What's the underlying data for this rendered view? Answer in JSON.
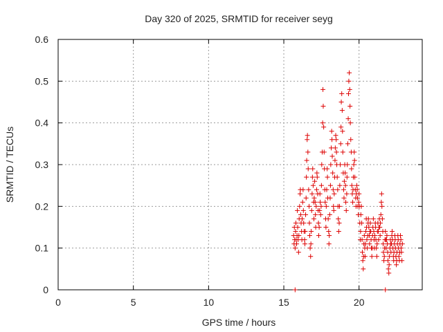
{
  "chart_data": {
    "type": "scatter",
    "title": "Day 320 of 2025, SRMTID for receiver seyg",
    "xlabel": "GPS time / hours",
    "ylabel": "SRMTID / TECUs",
    "xlim": [
      0,
      24.2
    ],
    "ylim": [
      0,
      0.6
    ],
    "x_ticks": [
      0,
      5,
      10,
      15,
      20
    ],
    "x_tick_labels": [
      "0",
      "5",
      "10",
      "15",
      "20"
    ],
    "y_ticks": [
      0,
      0.1,
      0.2,
      0.3,
      0.4,
      0.5,
      0.6
    ],
    "y_tick_labels": [
      "0",
      "0.1",
      "0.2",
      "0.3",
      "0.4",
      "0.5",
      "0.6"
    ],
    "grid": true,
    "marker": "+",
    "series_color": "#dd0000",
    "series": [
      {
        "name": "SRMTID",
        "points": [
          [
            15.65,
            0.13
          ],
          [
            15.68,
            0.11
          ],
          [
            15.7,
            0.15
          ],
          [
            15.72,
            0.12
          ],
          [
            15.75,
            0.1
          ],
          [
            15.78,
            0.14
          ],
          [
            15.8,
            0.16
          ],
          [
            15.82,
            0.12
          ],
          [
            15.85,
            0.11
          ],
          [
            15.88,
            0.13
          ],
          [
            15.9,
            0.19
          ],
          [
            15.92,
            0.15
          ],
          [
            15.95,
            0.12
          ],
          [
            15.98,
            0.09
          ],
          [
            16.0,
            0.13
          ],
          [
            16.02,
            0.17
          ],
          [
            16.05,
            0.2
          ],
          [
            16.08,
            0.23
          ],
          [
            16.1,
            0.24
          ],
          [
            16.12,
            0.18
          ],
          [
            16.15,
            0.16
          ],
          [
            16.18,
            0.14
          ],
          [
            16.2,
            0.12
          ],
          [
            16.22,
            0.17
          ],
          [
            16.25,
            0.21
          ],
          [
            16.28,
            0.24
          ],
          [
            16.3,
            0.19
          ],
          [
            16.32,
            0.16
          ],
          [
            16.35,
            0.14
          ],
          [
            16.38,
            0.12
          ],
          [
            16.4,
            0.11
          ],
          [
            16.42,
            0.14
          ],
          [
            16.45,
            0.18
          ],
          [
            16.48,
            0.22
          ],
          [
            16.5,
            0.27
          ],
          [
            16.52,
            0.31
          ],
          [
            16.55,
            0.36
          ],
          [
            16.57,
            0.37
          ],
          [
            16.6,
            0.33
          ],
          [
            16.62,
            0.29
          ],
          [
            16.65,
            0.24
          ],
          [
            16.68,
            0.2
          ],
          [
            16.7,
            0.16
          ],
          [
            16.72,
            0.13
          ],
          [
            16.75,
            0.1
          ],
          [
            16.78,
            0.08
          ],
          [
            16.8,
            0.11
          ],
          [
            16.82,
            0.14
          ],
          [
            16.85,
            0.19
          ],
          [
            16.88,
            0.23
          ],
          [
            16.9,
            0.27
          ],
          [
            16.92,
            0.29
          ],
          [
            16.95,
            0.25
          ],
          [
            16.98,
            0.21
          ],
          [
            17.0,
            0.17
          ],
          [
            17.02,
            0.22
          ],
          [
            17.05,
            0.26
          ],
          [
            17.08,
            0.21
          ],
          [
            17.1,
            0.18
          ],
          [
            17.12,
            0.15
          ],
          [
            17.15,
            0.2
          ],
          [
            17.18,
            0.24
          ],
          [
            17.2,
            0.28
          ],
          [
            17.22,
            0.27
          ],
          [
            17.25,
            0.23
          ],
          [
            17.28,
            0.19
          ],
          [
            17.3,
            0.16
          ],
          [
            17.32,
            0.13
          ],
          [
            17.35,
            0.15
          ],
          [
            17.38,
            0.19
          ],
          [
            17.4,
            0.23
          ],
          [
            17.42,
            0.21
          ],
          [
            17.45,
            0.18
          ],
          [
            17.48,
            0.2
          ],
          [
            17.5,
            0.25
          ],
          [
            17.52,
            0.3
          ],
          [
            17.55,
            0.33
          ],
          [
            17.58,
            0.4
          ],
          [
            17.6,
            0.48
          ],
          [
            17.62,
            0.44
          ],
          [
            17.65,
            0.39
          ],
          [
            17.68,
            0.33
          ],
          [
            17.7,
            0.29
          ],
          [
            17.72,
            0.24
          ],
          [
            17.75,
            0.21
          ],
          [
            17.78,
            0.17
          ],
          [
            17.8,
            0.15
          ],
          [
            17.82,
            0.2
          ],
          [
            17.85,
            0.24
          ],
          [
            17.88,
            0.29
          ],
          [
            17.9,
            0.27
          ],
          [
            17.92,
            0.22
          ],
          [
            17.95,
            0.17
          ],
          [
            17.98,
            0.14
          ],
          [
            18.0,
            0.11
          ],
          [
            18.02,
            0.13
          ],
          [
            18.05,
            0.18
          ],
          [
            18.08,
            0.22
          ],
          [
            18.1,
            0.25
          ],
          [
            18.12,
            0.3
          ],
          [
            18.15,
            0.34
          ],
          [
            18.18,
            0.38
          ],
          [
            18.2,
            0.36
          ],
          [
            18.22,
            0.32
          ],
          [
            18.25,
            0.28
          ],
          [
            18.28,
            0.24
          ],
          [
            18.3,
            0.2
          ],
          [
            18.32,
            0.19
          ],
          [
            18.35,
            0.23
          ],
          [
            18.38,
            0.27
          ],
          [
            18.4,
            0.31
          ],
          [
            18.42,
            0.34
          ],
          [
            18.45,
            0.37
          ],
          [
            18.48,
            0.36
          ],
          [
            18.5,
            0.33
          ],
          [
            18.52,
            0.3
          ],
          [
            18.55,
            0.27
          ],
          [
            18.58,
            0.24
          ],
          [
            18.6,
            0.2
          ],
          [
            18.62,
            0.17
          ],
          [
            18.65,
            0.14
          ],
          [
            18.68,
            0.16
          ],
          [
            18.7,
            0.2
          ],
          [
            18.72,
            0.25
          ],
          [
            18.75,
            0.3
          ],
          [
            18.78,
            0.35
          ],
          [
            18.8,
            0.39
          ],
          [
            18.82,
            0.45
          ],
          [
            18.85,
            0.47
          ],
          [
            18.88,
            0.43
          ],
          [
            18.9,
            0.38
          ],
          [
            18.92,
            0.33
          ],
          [
            18.95,
            0.28
          ],
          [
            18.98,
            0.24
          ],
          [
            19.0,
            0.22
          ],
          [
            19.02,
            0.26
          ],
          [
            19.05,
            0.3
          ],
          [
            19.08,
            0.28
          ],
          [
            19.1,
            0.25
          ],
          [
            19.12,
            0.21
          ],
          [
            19.15,
            0.19
          ],
          [
            19.18,
            0.23
          ],
          [
            19.2,
            0.27
          ],
          [
            19.22,
            0.3
          ],
          [
            19.25,
            0.35
          ],
          [
            19.28,
            0.41
          ],
          [
            19.3,
            0.47
          ],
          [
            19.32,
            0.5
          ],
          [
            19.35,
            0.52
          ],
          [
            19.38,
            0.48
          ],
          [
            19.4,
            0.44
          ],
          [
            19.42,
            0.4
          ],
          [
            19.45,
            0.36
          ],
          [
            19.48,
            0.33
          ],
          [
            19.5,
            0.29
          ],
          [
            19.52,
            0.25
          ],
          [
            19.55,
            0.23
          ],
          [
            19.58,
            0.21
          ],
          [
            19.6,
            0.24
          ],
          [
            19.62,
            0.27
          ],
          [
            19.65,
            0.3
          ],
          [
            19.68,
            0.33
          ],
          [
            19.7,
            0.31
          ],
          [
            19.72,
            0.27
          ],
          [
            19.75,
            0.24
          ],
          [
            19.78,
            0.22
          ],
          [
            19.8,
            0.2
          ],
          [
            19.82,
            0.23
          ],
          [
            19.85,
            0.25
          ],
          [
            19.88,
            0.24
          ],
          [
            19.9,
            0.22
          ],
          [
            19.92,
            0.2
          ],
          [
            19.95,
            0.18
          ],
          [
            19.98,
            0.21
          ],
          [
            20.0,
            0.23
          ],
          [
            20.02,
            0.2
          ],
          [
            20.05,
            0.16
          ],
          [
            20.08,
            0.12
          ],
          [
            20.1,
            0.14
          ],
          [
            20.12,
            0.18
          ],
          [
            20.15,
            0.2
          ],
          [
            20.18,
            0.16
          ],
          [
            20.2,
            0.12
          ],
          [
            20.22,
            0.09
          ],
          [
            20.25,
            0.07
          ],
          [
            20.28,
            0.05
          ],
          [
            20.3,
            0.08
          ],
          [
            20.32,
            0.11
          ],
          [
            20.35,
            0.13
          ],
          [
            20.38,
            0.1
          ],
          [
            20.4,
            0.08
          ],
          [
            20.42,
            0.11
          ],
          [
            20.45,
            0.14
          ],
          [
            20.48,
            0.17
          ],
          [
            20.5,
            0.15
          ],
          [
            20.52,
            0.12
          ],
          [
            20.55,
            0.1
          ],
          [
            20.58,
            0.13
          ],
          [
            20.6,
            0.16
          ],
          [
            20.62,
            0.17
          ],
          [
            20.65,
            0.15
          ],
          [
            20.68,
            0.13
          ],
          [
            20.7,
            0.11
          ],
          [
            20.72,
            0.14
          ],
          [
            20.75,
            0.16
          ],
          [
            20.78,
            0.14
          ],
          [
            20.8,
            0.12
          ],
          [
            20.82,
            0.1
          ],
          [
            20.85,
            0.08
          ],
          [
            20.88,
            0.1
          ],
          [
            20.9,
            0.13
          ],
          [
            20.92,
            0.15
          ],
          [
            20.95,
            0.17
          ],
          [
            20.98,
            0.14
          ],
          [
            21.0,
            0.12
          ],
          [
            21.02,
            0.1
          ],
          [
            21.05,
            0.13
          ],
          [
            21.08,
            0.16
          ],
          [
            21.1,
            0.15
          ],
          [
            21.12,
            0.12
          ],
          [
            21.15,
            0.1
          ],
          [
            21.18,
            0.08
          ],
          [
            21.2,
            0.11
          ],
          [
            21.22,
            0.14
          ],
          [
            21.25,
            0.16
          ],
          [
            21.28,
            0.14
          ],
          [
            21.3,
            0.12
          ],
          [
            21.32,
            0.15
          ],
          [
            21.35,
            0.17
          ],
          [
            21.38,
            0.15
          ],
          [
            21.4,
            0.13
          ],
          [
            21.42,
            0.16
          ],
          [
            21.45,
            0.18
          ],
          [
            21.48,
            0.21
          ],
          [
            21.5,
            0.23
          ],
          [
            21.52,
            0.2
          ],
          [
            21.55,
            0.17
          ],
          [
            21.58,
            0.14
          ],
          [
            21.6,
            0.11
          ],
          [
            21.62,
            0.09
          ],
          [
            21.65,
            0.07
          ],
          [
            21.68,
            0.08
          ],
          [
            21.7,
            0.1
          ],
          [
            21.72,
            0.12
          ],
          [
            21.75,
            0.14
          ],
          [
            21.78,
            0.12
          ],
          [
            21.8,
            0.1
          ],
          [
            21.82,
            0.12
          ],
          [
            21.85,
            0.13
          ],
          [
            21.88,
            0.11
          ],
          [
            21.9,
            0.09
          ],
          [
            21.92,
            0.07
          ],
          [
            21.95,
            0.05
          ],
          [
            21.98,
            0.04
          ],
          [
            22.0,
            0.06
          ],
          [
            22.02,
            0.08
          ],
          [
            22.05,
            0.1
          ],
          [
            22.08,
            0.12
          ],
          [
            22.1,
            0.11
          ],
          [
            22.12,
            0.09
          ],
          [
            22.15,
            0.11
          ],
          [
            22.18,
            0.13
          ],
          [
            22.2,
            0.14
          ],
          [
            22.22,
            0.12
          ],
          [
            22.25,
            0.1
          ],
          [
            22.28,
            0.08
          ],
          [
            22.3,
            0.07
          ],
          [
            22.32,
            0.09
          ],
          [
            22.35,
            0.11
          ],
          [
            22.38,
            0.13
          ],
          [
            22.4,
            0.12
          ],
          [
            22.42,
            0.1
          ],
          [
            22.45,
            0.08
          ],
          [
            22.48,
            0.06
          ],
          [
            22.5,
            0.07
          ],
          [
            22.52,
            0.09
          ],
          [
            22.55,
            0.11
          ],
          [
            22.58,
            0.13
          ],
          [
            22.6,
            0.12
          ],
          [
            22.62,
            0.1
          ],
          [
            22.65,
            0.08
          ],
          [
            22.68,
            0.07
          ],
          [
            22.7,
            0.09
          ],
          [
            22.72,
            0.11
          ],
          [
            22.75,
            0.13
          ],
          [
            22.78,
            0.12
          ],
          [
            22.8,
            0.1
          ],
          [
            22.82,
            0.09
          ],
          [
            22.85,
            0.07
          ],
          [
            22.88,
            0.11
          ],
          [
            15.75,
            0.0
          ],
          [
            21.75,
            0.0
          ]
        ]
      }
    ]
  }
}
